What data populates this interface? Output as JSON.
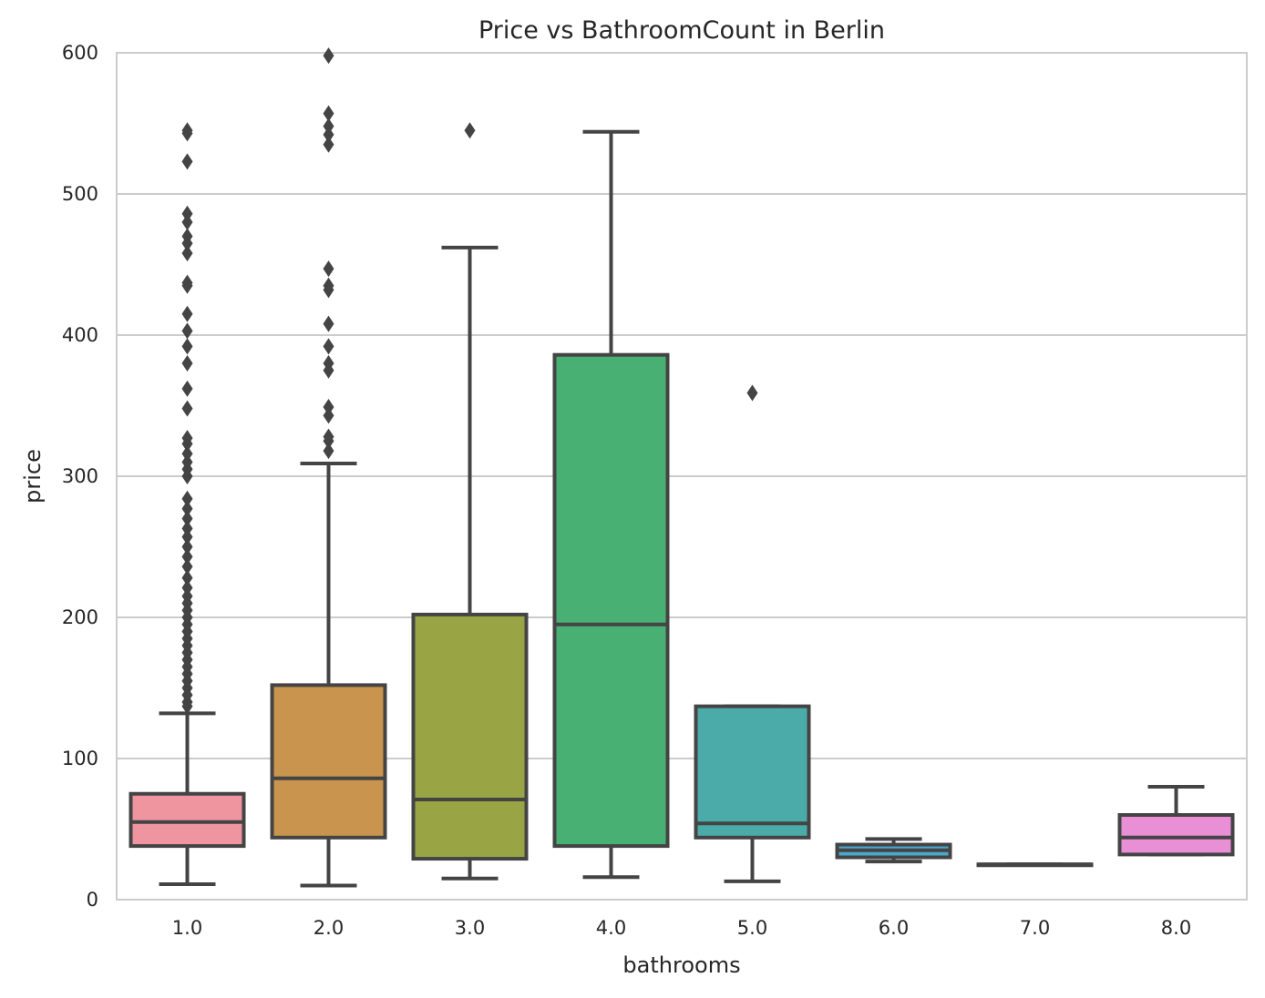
{
  "chart_data": {
    "type": "box",
    "title": "Price vs BathroomCount in Berlin",
    "xlabel": "bathrooms",
    "ylabel": "price",
    "ylim": [
      0,
      600
    ],
    "yticks": [
      "0",
      "100",
      "200",
      "300",
      "400",
      "500",
      "600"
    ],
    "grid": true,
    "categories": [
      "1.0",
      "2.0",
      "3.0",
      "4.0",
      "5.0",
      "6.0",
      "7.0",
      "8.0"
    ],
    "boxes": [
      {
        "category": "1.0",
        "whisker_low": 11,
        "q1": 38,
        "median": 55,
        "q3": 75,
        "whisker_high": 132,
        "color": "#ee95a0",
        "outliers": [
          545,
          543,
          523,
          486,
          480,
          470,
          465,
          458,
          437,
          435,
          415,
          403,
          392,
          380,
          362,
          348,
          327,
          323,
          316,
          310,
          305,
          300,
          284,
          277,
          270,
          263,
          257,
          250,
          243,
          236,
          228,
          221,
          215,
          210,
          205,
          200,
          195,
          190,
          185,
          180,
          175,
          170,
          165,
          160,
          155,
          150,
          145,
          140,
          137
        ]
      },
      {
        "category": "2.0",
        "whisker_low": 10,
        "q1": 44,
        "median": 86,
        "q3": 152,
        "whisker_high": 309,
        "color": "#c9944d",
        "outliers": [
          598,
          557,
          548,
          542,
          535,
          447,
          435,
          432,
          408,
          392,
          380,
          375,
          349,
          343,
          328,
          325,
          318
        ]
      },
      {
        "category": "3.0",
        "whisker_low": 15,
        "q1": 29,
        "median": 71,
        "q3": 202,
        "whisker_high": 462,
        "color": "#99a544",
        "outliers": [
          545
        ]
      },
      {
        "category": "4.0",
        "whisker_low": 16,
        "q1": 38,
        "median": 195,
        "q3": 386,
        "whisker_high": 544,
        "color": "#49b074",
        "outliers": []
      },
      {
        "category": "5.0",
        "whisker_low": 13,
        "q1": 44,
        "median": 54,
        "q3": 137,
        "whisker_high": 137,
        "color": "#4aaba8",
        "outliers": [
          359
        ]
      },
      {
        "category": "6.0",
        "whisker_low": 27,
        "q1": 30,
        "median": 35,
        "q3": 39,
        "whisker_high": 43,
        "color": "#4ba7cd",
        "outliers": []
      },
      {
        "category": "7.0",
        "whisker_low": 25,
        "q1": 25,
        "median": 25,
        "q3": 25,
        "whisker_high": 25,
        "color": "#a09ae0",
        "outliers": []
      },
      {
        "category": "8.0",
        "whisker_low": 32,
        "q1": 32,
        "median": 44,
        "q3": 60,
        "whisker_high": 80,
        "color": "#e88fd6",
        "outliers": []
      }
    ],
    "colors": {
      "line": "#444444",
      "grid": "#cccccc",
      "background": "#ffffff",
      "text": "#262626"
    }
  }
}
